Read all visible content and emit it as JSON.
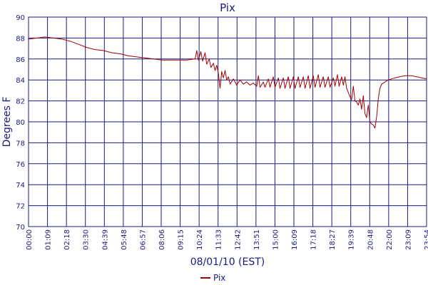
{
  "chart_data": {
    "type": "line",
    "title": "Pix",
    "xlabel": "08/01/10 (EST)",
    "ylabel": "Degrees F",
    "ylim": [
      70,
      90
    ],
    "yticks": [
      "70",
      "72",
      "74",
      "76",
      "78",
      "80",
      "82",
      "84",
      "86",
      "88",
      "90"
    ],
    "xticks": [
      "00:00",
      "01:09",
      "02:18",
      "03:30",
      "04:39",
      "05:48",
      "06:57",
      "08:06",
      "09:15",
      "10:24",
      "11:33",
      "12:42",
      "13:51",
      "15:00",
      "16:09",
      "17:18",
      "18:27",
      "19:39",
      "20:48",
      "22:00",
      "23:09",
      "23:54"
    ],
    "grid": true,
    "legend_position": "bottom-center",
    "series": [
      {
        "name": "Pix",
        "color": "#a00000",
        "points": [
          [
            0.0,
            87.9
          ],
          [
            0.5,
            88.0
          ],
          [
            1.0,
            88.1
          ],
          [
            1.5,
            88.0
          ],
          [
            2.0,
            87.9
          ],
          [
            2.5,
            87.7
          ],
          [
            3.0,
            87.4
          ],
          [
            3.5,
            87.1
          ],
          [
            4.0,
            86.9
          ],
          [
            4.5,
            86.8
          ],
          [
            5.0,
            86.6
          ],
          [
            5.5,
            86.5
          ],
          [
            6.0,
            86.3
          ],
          [
            6.5,
            86.2
          ],
          [
            7.0,
            86.1
          ],
          [
            7.5,
            86.0
          ],
          [
            8.0,
            85.9
          ],
          [
            8.5,
            85.9
          ],
          [
            9.0,
            85.9
          ],
          [
            9.5,
            85.9
          ],
          [
            10.0,
            86.0
          ],
          [
            10.1,
            86.8
          ],
          [
            10.2,
            85.9
          ],
          [
            10.35,
            86.7
          ],
          [
            10.45,
            85.8
          ],
          [
            10.6,
            86.6
          ],
          [
            10.7,
            85.5
          ],
          [
            10.85,
            86.0
          ],
          [
            10.95,
            85.2
          ],
          [
            11.1,
            85.6
          ],
          [
            11.2,
            84.9
          ],
          [
            11.3,
            85.4
          ],
          [
            11.4,
            84.6
          ],
          [
            11.5,
            83.2
          ],
          [
            11.6,
            84.8
          ],
          [
            11.7,
            84.2
          ],
          [
            11.8,
            84.9
          ],
          [
            11.9,
            84.0
          ],
          [
            12.0,
            84.3
          ],
          [
            12.1,
            83.6
          ],
          [
            12.3,
            84.1
          ],
          [
            12.5,
            83.5
          ],
          [
            12.7,
            84.0
          ],
          [
            12.9,
            83.6
          ],
          [
            13.1,
            83.8
          ],
          [
            13.3,
            83.5
          ],
          [
            13.5,
            83.7
          ],
          [
            13.7,
            83.4
          ],
          [
            13.8,
            84.4
          ],
          [
            13.9,
            83.3
          ],
          [
            14.1,
            83.8
          ],
          [
            14.2,
            83.3
          ],
          [
            14.4,
            84.1
          ],
          [
            14.5,
            83.3
          ],
          [
            14.7,
            84.3
          ],
          [
            14.8,
            83.3
          ],
          [
            15.0,
            84.2
          ],
          [
            15.1,
            83.2
          ],
          [
            15.3,
            84.2
          ],
          [
            15.4,
            83.2
          ],
          [
            15.6,
            84.3
          ],
          [
            15.7,
            83.2
          ],
          [
            15.9,
            84.3
          ],
          [
            16.0,
            83.2
          ],
          [
            16.2,
            84.3
          ],
          [
            16.3,
            83.3
          ],
          [
            16.5,
            84.3
          ],
          [
            16.6,
            83.2
          ],
          [
            16.8,
            84.4
          ],
          [
            16.9,
            83.2
          ],
          [
            17.1,
            84.4
          ],
          [
            17.2,
            83.3
          ],
          [
            17.4,
            84.5
          ],
          [
            17.5,
            83.3
          ],
          [
            17.7,
            84.3
          ],
          [
            17.8,
            83.3
          ],
          [
            18.0,
            84.3
          ],
          [
            18.1,
            83.3
          ],
          [
            18.3,
            84.2
          ],
          [
            18.4,
            83.4
          ],
          [
            18.55,
            84.5
          ],
          [
            18.65,
            83.4
          ],
          [
            18.8,
            84.3
          ],
          [
            18.9,
            83.5
          ],
          [
            19.0,
            84.3
          ],
          [
            19.1,
            83.2
          ],
          [
            19.2,
            82.8
          ],
          [
            19.3,
            82.4
          ],
          [
            19.4,
            82.1
          ],
          [
            19.5,
            83.4
          ],
          [
            19.6,
            82.0
          ],
          [
            19.7,
            81.9
          ],
          [
            19.8,
            81.6
          ],
          [
            19.9,
            82.2
          ],
          [
            20.0,
            81.2
          ],
          [
            20.1,
            82.5
          ],
          [
            20.2,
            80.8
          ],
          [
            20.3,
            80.4
          ],
          [
            20.4,
            81.6
          ],
          [
            20.5,
            80.0
          ],
          [
            20.6,
            79.8
          ],
          [
            20.7,
            79.7
          ],
          [
            20.8,
            79.4
          ],
          [
            20.9,
            80.5
          ],
          [
            21.0,
            82.2
          ],
          [
            21.1,
            83.2
          ],
          [
            21.2,
            83.6
          ],
          [
            21.4,
            83.8
          ],
          [
            21.6,
            84.0
          ],
          [
            21.8,
            84.1
          ],
          [
            22.0,
            84.2
          ],
          [
            22.3,
            84.3
          ],
          [
            22.6,
            84.4
          ],
          [
            23.0,
            84.4
          ],
          [
            23.3,
            84.3
          ],
          [
            23.6,
            84.2
          ],
          [
            23.9,
            84.1
          ]
        ]
      }
    ]
  }
}
